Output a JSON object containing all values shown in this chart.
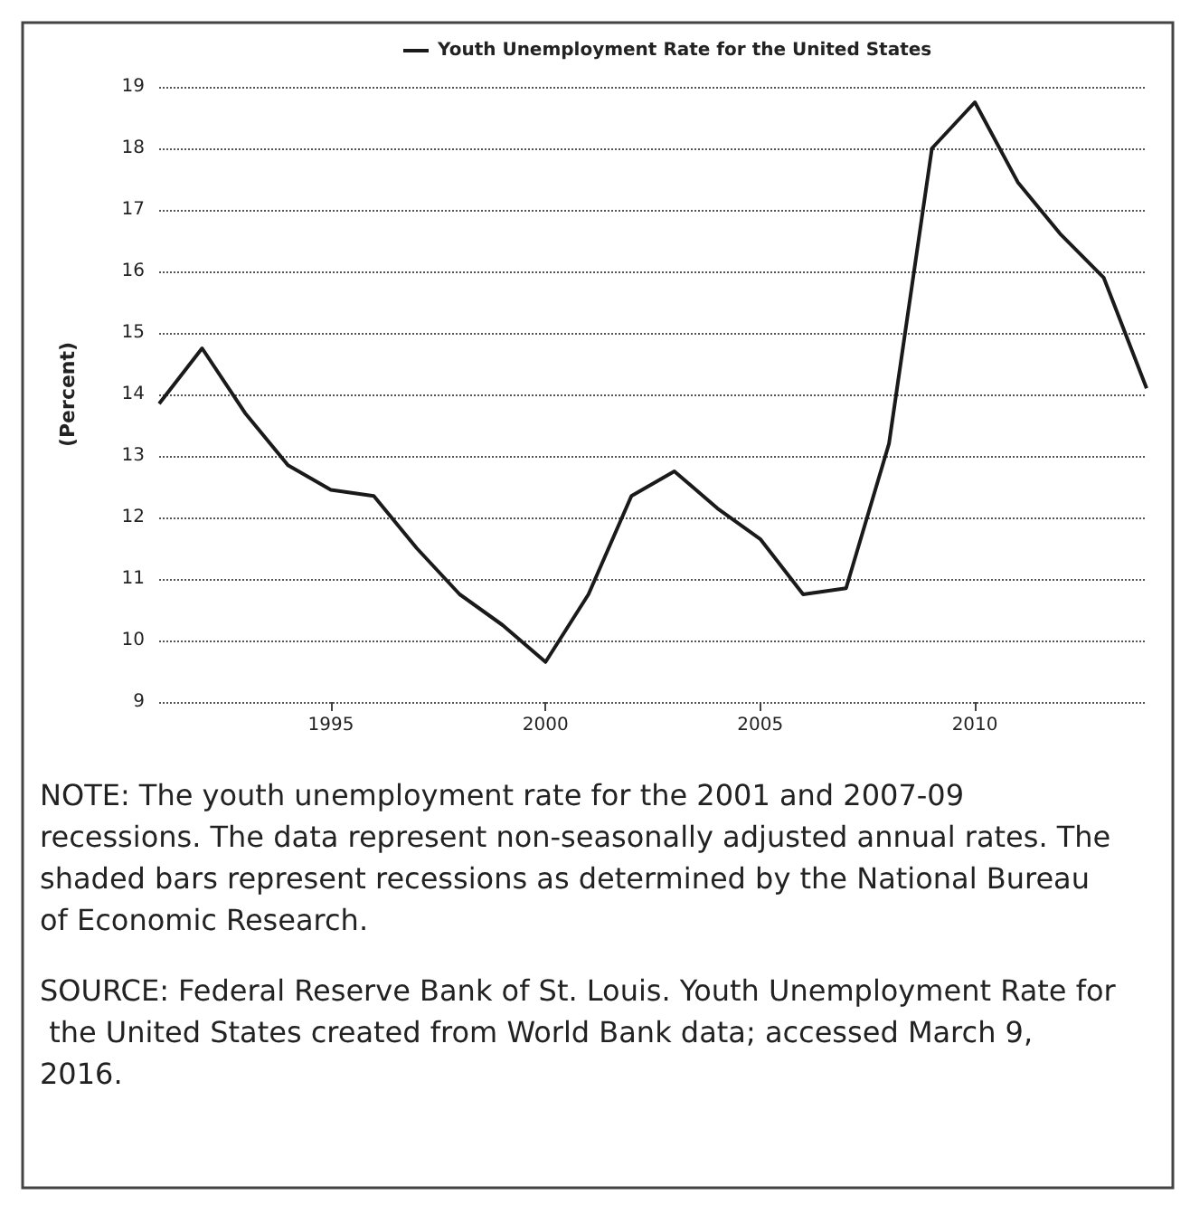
{
  "chart_data": {
    "type": "line",
    "ylabel": "(Percent)",
    "x": [
      1991,
      1992,
      1993,
      1994,
      1995,
      1996,
      1997,
      1998,
      1999,
      2000,
      2001,
      2002,
      2003,
      2004,
      2005,
      2006,
      2007,
      2008,
      2009,
      2010,
      2011,
      2012,
      2013,
      2014
    ],
    "series": [
      {
        "name": "Youth Unemployment Rate for the United States",
        "color": "#1a1a1a",
        "values": [
          13.85,
          14.75,
          13.7,
          12.85,
          12.45,
          12.35,
          11.5,
          10.75,
          10.25,
          9.65,
          10.75,
          12.35,
          12.75,
          12.15,
          11.65,
          10.75,
          10.85,
          13.2,
          18.0,
          18.75,
          17.45,
          16.6,
          15.9,
          14.1
        ]
      }
    ],
    "xlim": [
      1991,
      2014
    ],
    "xticks": [
      1995,
      2000,
      2005,
      2010
    ],
    "ylim": [
      9,
      19
    ],
    "yticks": [
      9,
      10,
      11,
      12,
      13,
      14,
      15,
      16,
      17,
      18,
      19
    ],
    "grid": "y",
    "legend": "top",
    "marker": "none",
    "line_style": "solid",
    "annotations": [
      "NOTE: The youth unemployment rate for the 2001 and 2007-09 recessions. The data represent non-seasonally adjusted annual rates. The shaded bars represent recessions as determined by the National Bureau of Economic Research.",
      "SOURCE: Federal Reserve Bank of St. Louis. Youth Unemployment Rate for the United States created from World Bank data; accessed March 9, 2016."
    ]
  }
}
